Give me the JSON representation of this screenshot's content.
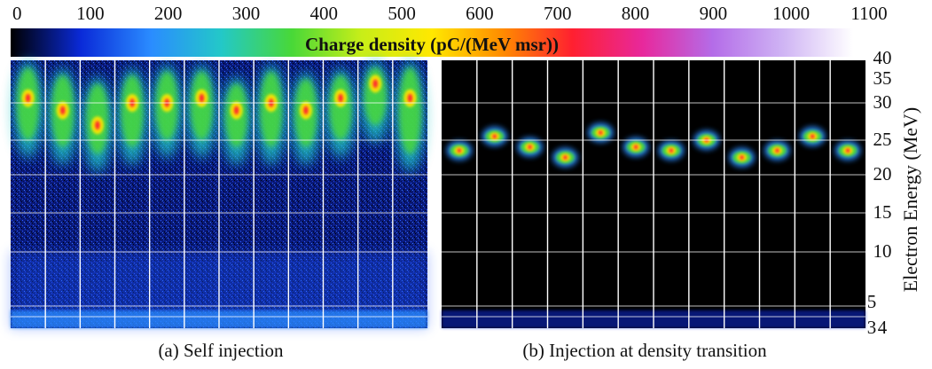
{
  "chart_data": {
    "type": "heatmap",
    "colorbar": {
      "title": "Charge density (pC/(MeV msr))",
      "ticks": [
        "0",
        "100",
        "200",
        "300",
        "400",
        "500",
        "600",
        "700",
        "800",
        "900",
        "1000",
        "1100"
      ],
      "range": [
        0,
        1100
      ],
      "colors": [
        "#000000",
        "#0a2ad8",
        "#2a8cff",
        "#23c8c8",
        "#48d838",
        "#c8ee18",
        "#ffe800",
        "#ff8c00",
        "#ff2030",
        "#e8289c",
        "#b46ce8",
        "#cfb4f4",
        "#ffffff"
      ]
    },
    "y_axis": {
      "label": "Electron Energy (MeV)",
      "ticks": [
        "3",
        "4",
        "5",
        "10",
        "15",
        "20",
        "25",
        "30",
        "35",
        "40"
      ]
    },
    "panels": [
      {
        "caption": "(a) Self injection",
        "shots": [
          {
            "peak_energy_mev": 31,
            "spread_mev": [
              25,
              38
            ]
          },
          {
            "peak_energy_mev": 29,
            "spread_mev": [
              24,
              36
            ]
          },
          {
            "peak_energy_mev": 27,
            "spread_mev": [
              23,
              34
            ]
          },
          {
            "peak_energy_mev": 30,
            "spread_mev": [
              24,
              36
            ]
          },
          {
            "peak_energy_mev": 30,
            "spread_mev": [
              25,
              37
            ]
          },
          {
            "peak_energy_mev": 31,
            "spread_mev": [
              25,
              37
            ]
          },
          {
            "peak_energy_mev": 29,
            "spread_mev": [
              24,
              34
            ]
          },
          {
            "peak_energy_mev": 30,
            "spread_mev": [
              24,
              37
            ]
          },
          {
            "peak_energy_mev": 29,
            "spread_mev": [
              24,
              35
            ]
          },
          {
            "peak_energy_mev": 31,
            "spread_mev": [
              25,
              36
            ]
          },
          {
            "peak_energy_mev": 34,
            "spread_mev": [
              27,
              38
            ]
          },
          {
            "peak_energy_mev": 31,
            "spread_mev": [
              23,
              38
            ]
          }
        ]
      },
      {
        "caption": "(b) Injection at density transition",
        "shots": [
          {
            "peak_energy_mev": 23.5
          },
          {
            "peak_energy_mev": 25.5
          },
          {
            "peak_energy_mev": 24.0
          },
          {
            "peak_energy_mev": 22.5
          },
          {
            "peak_energy_mev": 26.0
          },
          {
            "peak_energy_mev": 24.0
          },
          {
            "peak_energy_mev": 23.5
          },
          {
            "peak_energy_mev": 25.0
          },
          {
            "peak_energy_mev": 22.5
          },
          {
            "peak_energy_mev": 23.5
          },
          {
            "peak_energy_mev": 25.5
          },
          {
            "peak_energy_mev": 23.5
          }
        ]
      }
    ]
  }
}
